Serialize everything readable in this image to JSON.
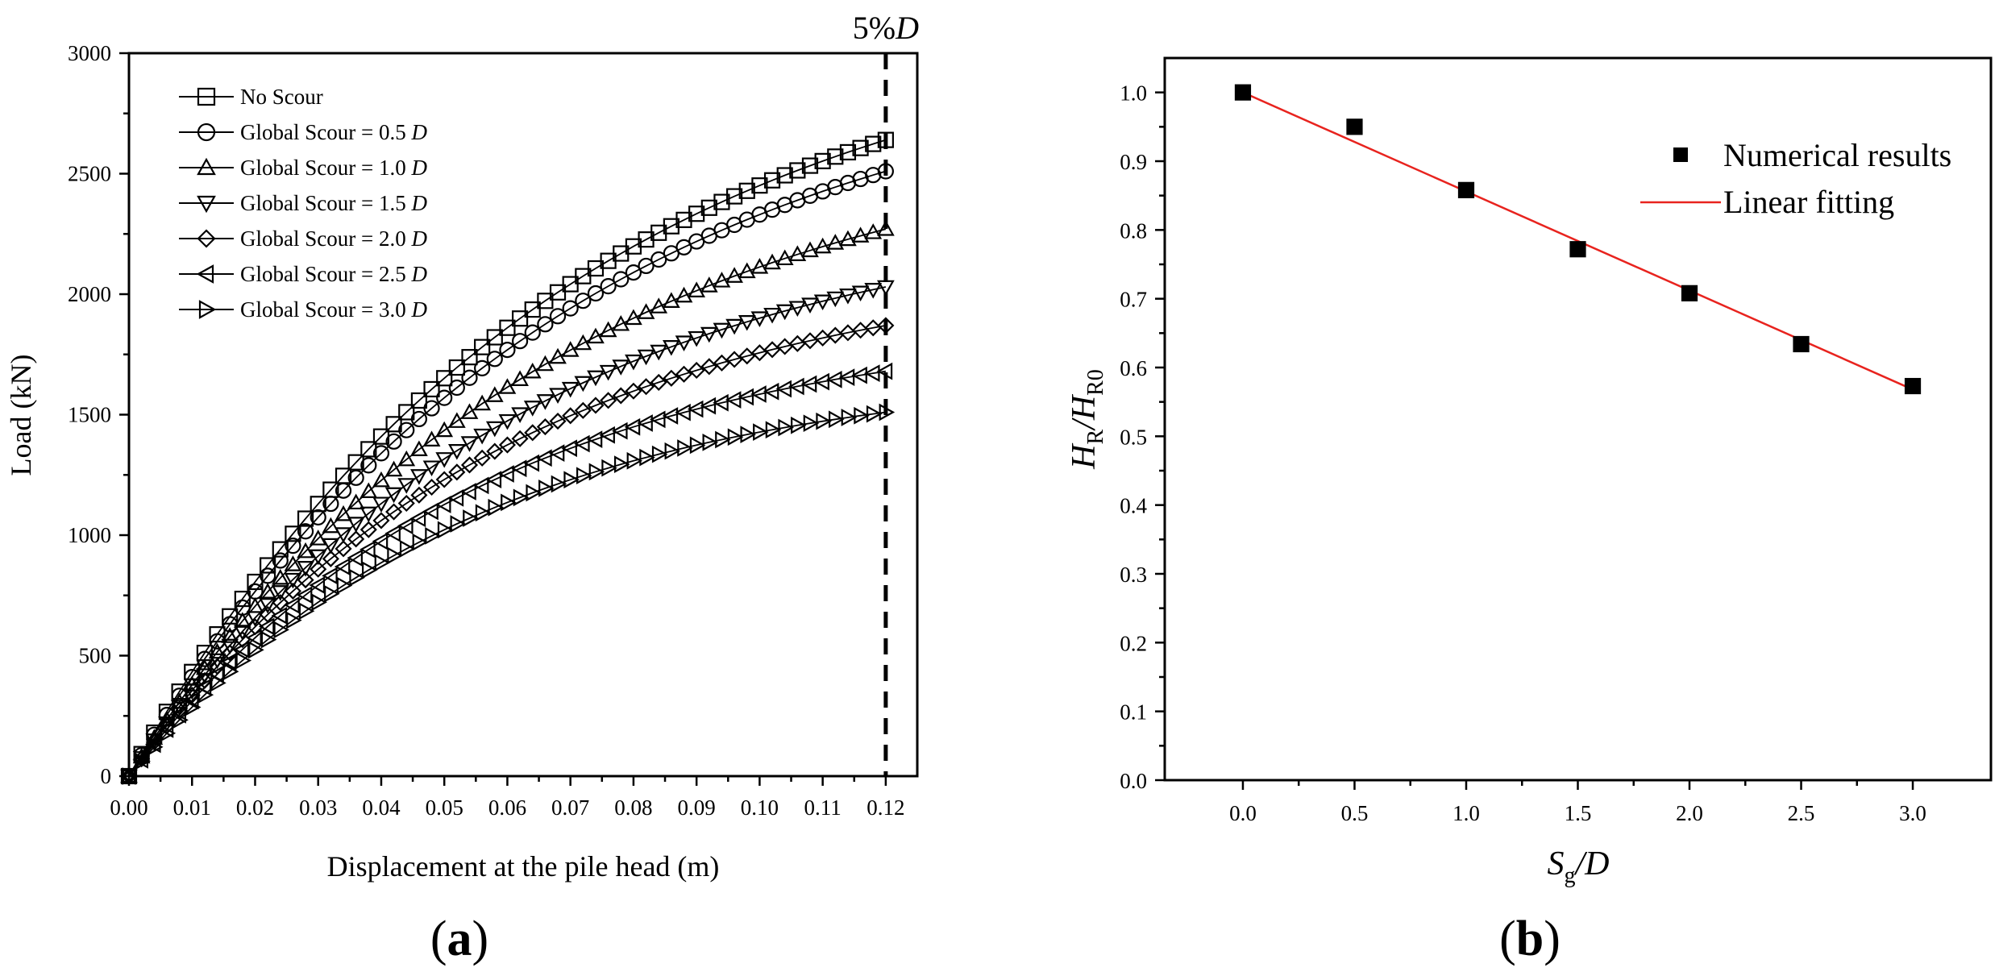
{
  "chart_data": [
    {
      "id": "a",
      "type": "line",
      "panel_label": "(a)",
      "panel_letter": "a",
      "title": "",
      "xlabel": "Displacement at the pile head  (m)",
      "ylabel": "Load (kN)",
      "xlim": [
        0,
        0.125
      ],
      "ylim": [
        0,
        3000
      ],
      "xticks": [
        "0.00",
        "0.01",
        "0.02",
        "0.03",
        "0.04",
        "0.05",
        "0.06",
        "0.07",
        "0.08",
        "0.09",
        "0.10",
        "0.11",
        "0.12"
      ],
      "yticks": [
        "0",
        "500",
        "1000",
        "1500",
        "2000",
        "2500",
        "3000"
      ],
      "grid": false,
      "legend_position": "top-left",
      "annotation": {
        "text": "5%",
        "italic": "D",
        "x": 0.12
      },
      "series": [
        {
          "name": "No Scour",
          "name_italic": "",
          "marker": "square",
          "x": [
            0,
            0.12
          ],
          "y": [
            0,
            2640
          ],
          "shape": 0.58
        },
        {
          "name": "Global Scour = 0.5 ",
          "name_italic": "D",
          "marker": "circle",
          "x": [
            0,
            0.12
          ],
          "y": [
            0,
            2510
          ],
          "shape": 0.58
        },
        {
          "name": "Global Scour = 1.0 ",
          "name_italic": "D",
          "marker": "triangle-up",
          "x": [
            0,
            0.12
          ],
          "y": [
            0,
            2270
          ],
          "shape": 0.6
        },
        {
          "name": "Global Scour = 1.5 ",
          "name_italic": "D",
          "marker": "triangle-down",
          "x": [
            0,
            0.12
          ],
          "y": [
            0,
            2030
          ],
          "shape": 0.65
        },
        {
          "name": "Global Scour = 2.0 ",
          "name_italic": "D",
          "marker": "diamond",
          "x": [
            0,
            0.12
          ],
          "y": [
            0,
            1870
          ],
          "shape": 0.68
        },
        {
          "name": "Global Scour = 2.5 ",
          "name_italic": "D",
          "marker": "triangle-left",
          "x": [
            0,
            0.12
          ],
          "y": [
            0,
            1680
          ],
          "shape": 0.72
        },
        {
          "name": "Global Scour = 3.0 ",
          "name_italic": "D",
          "marker": "triangle-right",
          "x": [
            0,
            0.12
          ],
          "y": [
            0,
            1510
          ],
          "shape": 0.74
        }
      ]
    },
    {
      "id": "b",
      "type": "scatter",
      "panel_label": "(b)",
      "panel_letter": "b",
      "title": "",
      "xlabel": "Sg/D",
      "xlabel_parts": {
        "main": "S",
        "sub": "g",
        "tail": "/D"
      },
      "ylabel": "HR/HR0",
      "ylabel_parts": {
        "a": "H",
        "a_sub": "R",
        "b": "/H",
        "b_sub": "R0"
      },
      "xlim": [
        -0.35,
        3.35
      ],
      "ylim": [
        0,
        1.05
      ],
      "xticks": [
        "0.0",
        "0.5",
        "1.0",
        "1.5",
        "2.0",
        "2.5",
        "3.0"
      ],
      "yticks": [
        "0.0",
        "0.1",
        "0.2",
        "0.3",
        "0.4",
        "0.5",
        "0.6",
        "0.7",
        "0.8",
        "0.9",
        "1.0"
      ],
      "grid": false,
      "legend_position": "top-right",
      "colors": {
        "points": "#000000",
        "fit": "#e8231e"
      },
      "series": [
        {
          "name": "Numerical results",
          "marker": "square-filled",
          "x": [
            0.0,
            0.5,
            1.0,
            1.5,
            2.0,
            2.5,
            3.0
          ],
          "y": [
            1.0,
            0.95,
            0.858,
            0.772,
            0.708,
            0.634,
            0.573
          ]
        },
        {
          "name": "Linear fitting",
          "marker": "line",
          "x": [
            0.0,
            3.0
          ],
          "y": [
            1.0,
            0.568
          ]
        }
      ]
    }
  ]
}
